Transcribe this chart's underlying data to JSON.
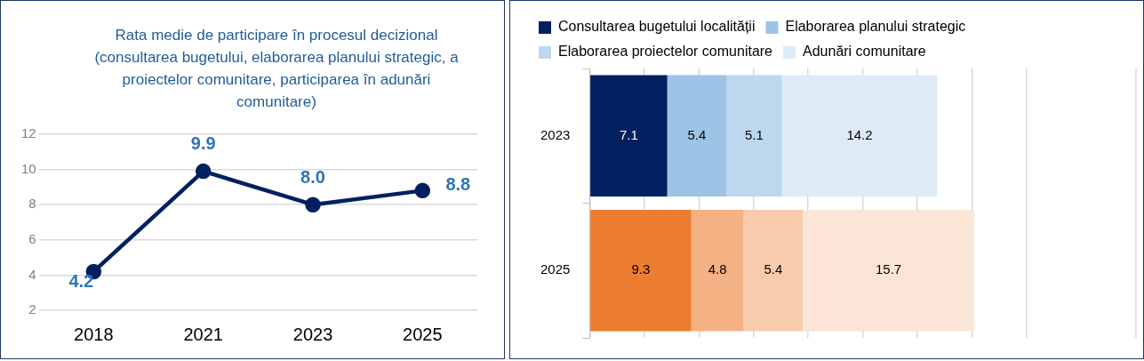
{
  "chart_data": [
    {
      "type": "line",
      "title": "Rata medie de participare în procesul decizional (consultarea bugetului, elaborarea planului strategic, a proiectelor comunitare, participarea în adunări comunitare)",
      "categories": [
        "2018",
        "2021",
        "2023",
        "2025"
      ],
      "values": [
        4.2,
        9.9,
        8.0,
        8.8
      ],
      "value_labels": [
        "4.2",
        "9.9",
        "8.0",
        "8.8"
      ],
      "color": "#002060",
      "marker": "circle",
      "ylim": [
        2,
        12
      ],
      "yticks": [
        2,
        4,
        6,
        8,
        10,
        12
      ],
      "grid": "y",
      "legend": false
    },
    {
      "type": "bar",
      "orientation": "horizontal",
      "stacked": true,
      "categories": [
        "2023",
        "2025"
      ],
      "xlim": [
        0,
        50
      ],
      "xticks": [
        {
          "value": 0,
          "label": null
        },
        {
          "value": 5,
          "label": null
        },
        {
          "value": 10,
          "label": null
        },
        {
          "value": 15,
          "label": null
        },
        {
          "value": 20,
          "label": null
        },
        {
          "value": 25,
          "label": null
        },
        {
          "value": 30,
          "label": null
        },
        {
          "value": 35,
          "label": null
        },
        {
          "value": 40,
          "label": null
        }
      ],
      "tick_labels": "y",
      "grid": "x",
      "legend": "top",
      "data_labels": true,
      "series": [
        {
          "name": "Consultarea bugetului localității",
          "color": "#002060",
          "colors": [
            "#002060",
            "#ed7d31"
          ],
          "values": [
            7.1,
            9.3
          ]
        },
        {
          "name": "Elaborarea planului strategic",
          "color": "#9dc3e6",
          "colors": [
            "#9dc3e6",
            "#f4b183"
          ],
          "values": [
            5.4,
            4.8
          ]
        },
        {
          "name": "Elaborarea proiectelor comunitare",
          "color": "#bdd7ee",
          "colors": [
            "#bdd7ee",
            "#f8cbad"
          ],
          "values": [
            5.1,
            5.4
          ]
        },
        {
          "name": "Adunări comunitare",
          "color": "#deebf7",
          "colors": [
            "#deebf7",
            "#fbe5d6"
          ],
          "values": [
            14.2,
            15.7
          ]
        }
      ]
    }
  ]
}
